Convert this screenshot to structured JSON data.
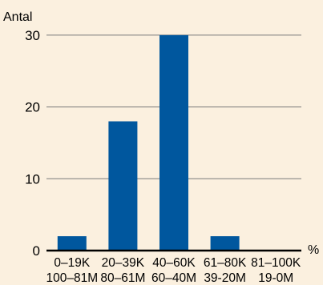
{
  "chart_data": {
    "type": "bar",
    "title": "",
    "ylabel": "Antal",
    "xlabel": "%",
    "categories": [
      [
        "0–19K",
        "100–81M"
      ],
      [
        "20–39K",
        "80–61M"
      ],
      [
        "40–60K",
        "60–40M"
      ],
      [
        "61–80K",
        "39-20M"
      ],
      [
        "81–100K",
        "19-0M"
      ]
    ],
    "values": [
      2,
      18,
      30,
      2,
      0
    ],
    "yticks": [
      0,
      10,
      20,
      30
    ],
    "ylim": [
      0,
      31
    ],
    "grid": true,
    "colors": {
      "bar": "#00579e",
      "background": "#fbf0df",
      "gridline": "#7a7a7a",
      "axis": "#000000"
    }
  }
}
